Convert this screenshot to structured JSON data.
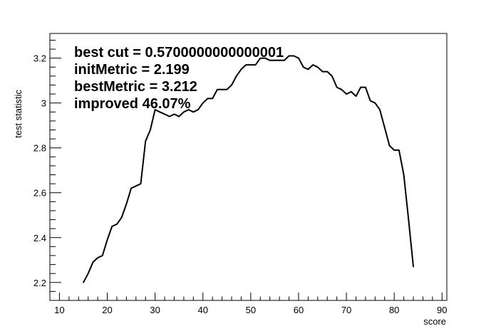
{
  "chart_data": {
    "type": "line",
    "xlabel": "score",
    "ylabel": "test statistic",
    "xlim": [
      8,
      91
    ],
    "ylim": [
      2.12,
      3.31
    ],
    "x_ticks": [
      10,
      20,
      30,
      40,
      50,
      60,
      70,
      80,
      90
    ],
    "y_ticks": [
      2.2,
      2.4,
      2.6,
      2.8,
      3,
      3.2
    ],
    "x_tick_labels": [
      "10",
      "20",
      "30",
      "40",
      "50",
      "60",
      "70",
      "80",
      "90"
    ],
    "y_tick_labels": [
      "2.2",
      "2.4",
      "2.6",
      "2.8",
      "3",
      "3.2"
    ],
    "grid": false,
    "annotations": [
      "best cut = 0.5700000000000001",
      "initMetric = 2.199",
      "bestMetric = 3.212",
      "improved 46.07%"
    ],
    "series": [
      {
        "color": "#000000",
        "x": [
          15,
          16,
          17,
          18,
          19,
          20,
          21,
          22,
          23,
          24,
          25,
          26,
          27,
          28,
          29,
          30,
          31,
          32,
          33,
          34,
          35,
          36,
          37,
          38,
          39,
          40,
          41,
          42,
          43,
          44,
          45,
          46,
          47,
          48,
          49,
          50,
          51,
          52,
          53,
          54,
          55,
          56,
          57,
          58,
          59,
          60,
          61,
          62,
          63,
          64,
          65,
          66,
          67,
          68,
          69,
          70,
          71,
          72,
          73,
          74,
          75,
          76,
          77,
          78,
          79,
          80,
          81,
          82,
          83,
          84
        ],
        "y": [
          2.2,
          2.24,
          2.29,
          2.31,
          2.32,
          2.39,
          2.45,
          2.46,
          2.49,
          2.55,
          2.62,
          2.63,
          2.64,
          2.83,
          2.88,
          2.97,
          2.96,
          2.95,
          2.94,
          2.95,
          2.94,
          2.96,
          2.97,
          2.96,
          2.97,
          3.0,
          3.02,
          3.02,
          3.06,
          3.06,
          3.06,
          3.08,
          3.12,
          3.15,
          3.17,
          3.17,
          3.17,
          3.2,
          3.2,
          3.19,
          3.19,
          3.19,
          3.19,
          3.21,
          3.21,
          3.2,
          3.16,
          3.15,
          3.17,
          3.16,
          3.14,
          3.14,
          3.12,
          3.07,
          3.06,
          3.04,
          3.05,
          3.03,
          3.07,
          3.07,
          3.01,
          3.0,
          2.97,
          2.89,
          2.81,
          2.79,
          2.79,
          2.68,
          2.48,
          2.27
        ]
      }
    ]
  }
}
